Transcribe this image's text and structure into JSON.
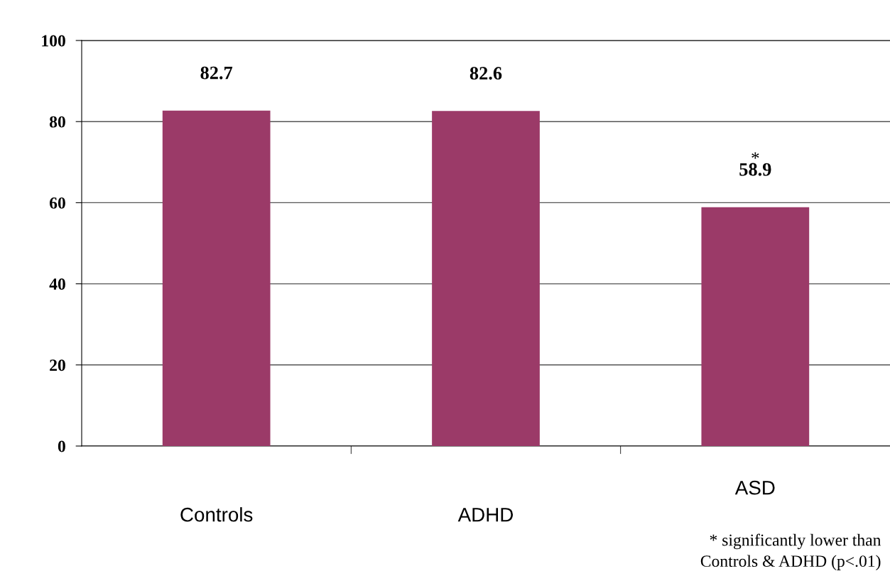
{
  "chart_data": {
    "type": "bar",
    "categories": [
      "Controls",
      "ADHD",
      "ASD"
    ],
    "values": [
      82.7,
      82.6,
      58.9
    ],
    "color": "#9b3a68",
    "ylim": [
      0,
      100
    ],
    "yticks": [
      0,
      20,
      40,
      60,
      80,
      100
    ],
    "grid": "y",
    "data_labels": true,
    "annotations": [
      "*",
      "* significantly lower than\nControls & ADHD (p<.01)"
    ]
  }
}
